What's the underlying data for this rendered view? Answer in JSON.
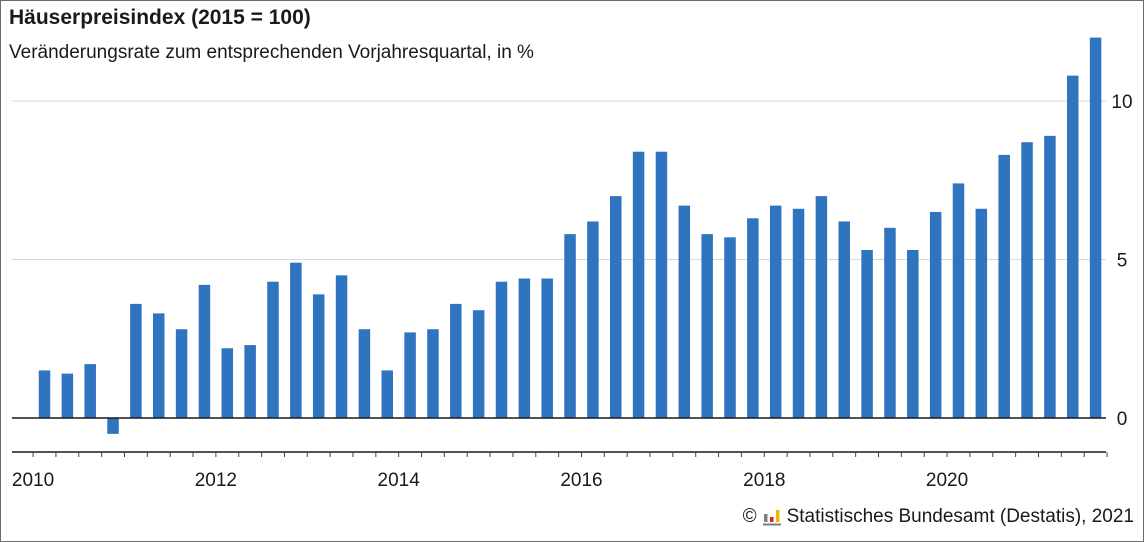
{
  "header": {
    "title": "Häuserpreisindex (2015 = 100)",
    "subtitle": "Veränderungsrate zum entsprechenden Vorjahresquartal, in %"
  },
  "footer": {
    "copyright_symbol": "©",
    "source": "Statistisches Bundesamt (Destatis), 2021"
  },
  "colors": {
    "bar": "#2f74bf",
    "grid": "#d9d9d9",
    "axis": "#1a1a1a",
    "logo_yellow": "#f2b400",
    "logo_red": "#d9251c",
    "logo_grey": "#7d7d7d"
  },
  "chart_data": {
    "type": "bar",
    "title": "Häuserpreisindex (2015 = 100)",
    "subtitle": "Veränderungsrate zum entsprechenden Vorjahresquartal, in %",
    "xlabel": "",
    "ylabel": "",
    "categories": [
      "2010 Q1",
      "2010 Q2",
      "2010 Q3",
      "2010 Q4",
      "2011 Q1",
      "2011 Q2",
      "2011 Q3",
      "2011 Q4",
      "2012 Q1",
      "2012 Q2",
      "2012 Q3",
      "2012 Q4",
      "2013 Q1",
      "2013 Q2",
      "2013 Q3",
      "2013 Q4",
      "2014 Q1",
      "2014 Q2",
      "2014 Q3",
      "2014 Q4",
      "2015 Q1",
      "2015 Q2",
      "2015 Q3",
      "2015 Q4",
      "2016 Q1",
      "2016 Q2",
      "2016 Q3",
      "2016 Q4",
      "2017 Q1",
      "2017 Q2",
      "2017 Q3",
      "2017 Q4",
      "2018 Q1",
      "2018 Q2",
      "2018 Q3",
      "2018 Q4",
      "2019 Q1",
      "2019 Q2",
      "2019 Q3",
      "2019 Q4",
      "2020 Q1",
      "2020 Q2",
      "2020 Q3",
      "2020 Q4",
      "2021 Q1",
      "2021 Q2",
      "2021 Q3"
    ],
    "values": [
      1.5,
      1.4,
      1.7,
      -0.5,
      3.6,
      3.3,
      2.8,
      4.2,
      2.2,
      2.3,
      4.3,
      4.9,
      3.9,
      4.5,
      2.8,
      1.5,
      2.7,
      2.8,
      3.6,
      3.4,
      4.3,
      4.4,
      4.4,
      5.8,
      6.2,
      7.0,
      8.4,
      8.4,
      6.7,
      5.8,
      5.7,
      6.3,
      6.7,
      6.6,
      7.0,
      6.2,
      5.3,
      6.0,
      5.3,
      6.5,
      7.4,
      6.6,
      8.3,
      8.7,
      8.9,
      10.8,
      12.0
    ],
    "ylim": [
      -1,
      12
    ],
    "y_ticks": [
      0,
      5,
      10
    ],
    "y_tick_labels": [
      "0",
      "5",
      "10"
    ],
    "y_axis_position": "right",
    "x_tick_labels": [
      "2010",
      "2012",
      "2014",
      "2016",
      "2018",
      "2020"
    ],
    "x_tick_label_index": [
      0,
      8,
      16,
      24,
      32,
      40
    ],
    "grid": true,
    "legend": "none"
  }
}
